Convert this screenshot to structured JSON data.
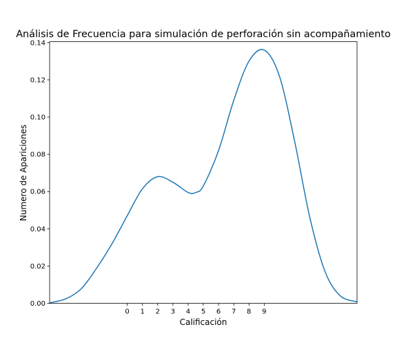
{
  "chart_data": {
    "type": "line",
    "title": "Análisis de Frecuencia para simulación de perforación sin acompañamiento",
    "xlabel": "Calificación",
    "ylabel": "Numero de Apariciones",
    "xlim": [
      -5.1,
      15.1
    ],
    "ylim": [
      0,
      0.1405
    ],
    "grid": false,
    "legend": "none",
    "x_ticks": [
      {
        "value": 0,
        "label": "0"
      },
      {
        "value": 1,
        "label": "1"
      },
      {
        "value": 2,
        "label": "2"
      },
      {
        "value": 3,
        "label": "3"
      },
      {
        "value": 4,
        "label": "4"
      },
      {
        "value": 5,
        "label": "5"
      },
      {
        "value": 6,
        "label": "6"
      },
      {
        "value": 7,
        "label": "7"
      },
      {
        "value": 8,
        "label": "8"
      },
      {
        "value": 9,
        "label": "9"
      }
    ],
    "y_ticks": [
      {
        "value": 0,
        "label": "0.00"
      },
      {
        "value": 0.02,
        "label": "0.02"
      },
      {
        "value": 0.04,
        "label": "0.04"
      },
      {
        "value": 0.06,
        "label": "0.06"
      },
      {
        "value": 0.08,
        "label": "0.08"
      },
      {
        "value": 0.1,
        "label": "0.10"
      },
      {
        "value": 0.12,
        "label": "0.12"
      },
      {
        "value": 0.14,
        "label": "0.14"
      }
    ],
    "series": [
      {
        "color": "#1f77b4",
        "x": [
          -5.1,
          -4.0,
          -3.0,
          -2.0,
          -1.0,
          0.0,
          1.0,
          2.0,
          3.0,
          4.0,
          4.5,
          5.0,
          6.0,
          7.0,
          8.0,
          9.0,
          10.0,
          11.0,
          12.0,
          13.0,
          14.0,
          15.1
        ],
        "y": [
          0.0002,
          0.0025,
          0.008,
          0.019,
          0.032,
          0.047,
          0.0615,
          0.068,
          0.065,
          0.0595,
          0.0595,
          0.063,
          0.082,
          0.109,
          0.13,
          0.136,
          0.122,
          0.087,
          0.046,
          0.017,
          0.004,
          0.0008
        ]
      }
    ]
  }
}
